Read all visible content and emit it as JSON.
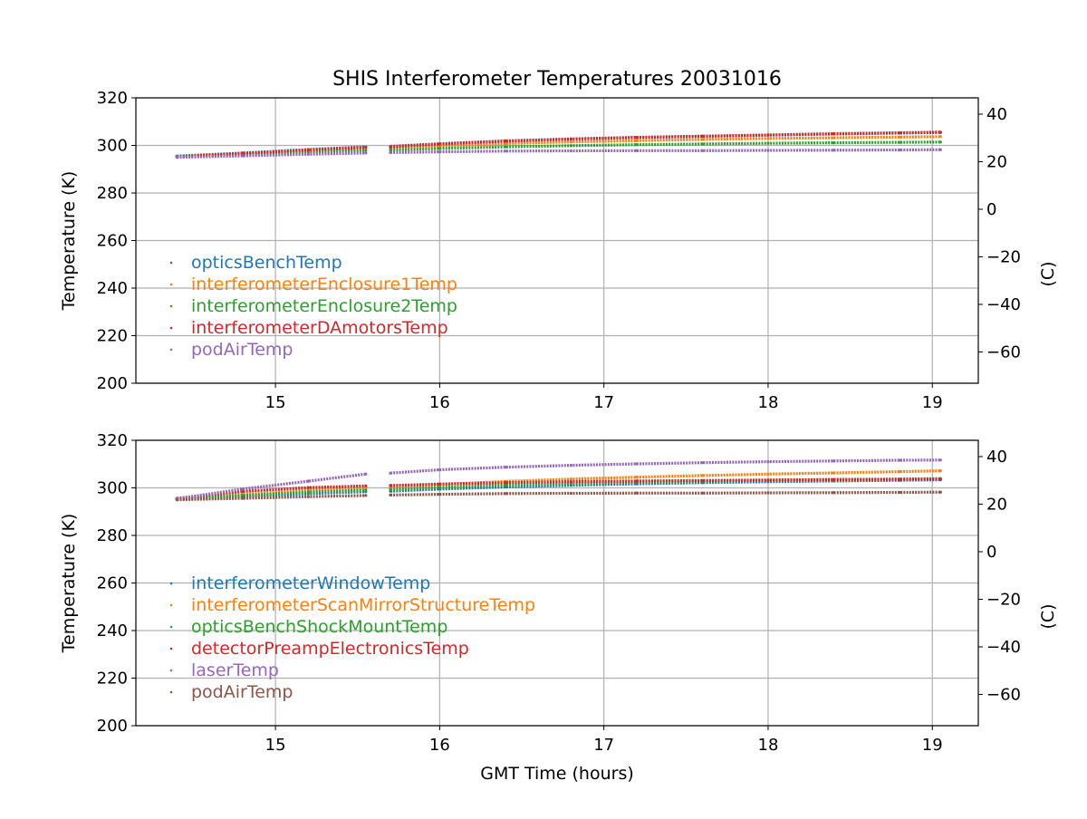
{
  "figure": {
    "title": "SHIS Interferometer Temperatures 20031016",
    "xlabel": "GMT Time (hours)"
  },
  "chart_data": [
    {
      "type": "scatter",
      "title": "SHIS Interferometer Temperatures 20031016",
      "xlabel": "",
      "ylabel": "Temperature (K)",
      "y2label": "(C)",
      "xlim": [
        14.15,
        19.28
      ],
      "ylim": [
        200,
        320
      ],
      "y2lim": [
        -73.15,
        46.85
      ],
      "xticks": [
        15,
        16,
        17,
        18,
        19
      ],
      "yticks": [
        200,
        220,
        240,
        260,
        280,
        300,
        320
      ],
      "y2ticks": [
        -60,
        -40,
        -20,
        0,
        20,
        40
      ],
      "grid": true,
      "legend_position": "lower-left",
      "x": [
        14.4,
        14.8,
        15.2,
        15.55,
        15.7,
        16.0,
        16.4,
        16.8,
        17.2,
        17.6,
        18.0,
        18.4,
        18.8,
        19.05
      ],
      "series": [
        {
          "name": "opticsBenchTemp",
          "color": "#1f77b4",
          "values": [
            295.5,
            296.8,
            298.3,
            299.4,
            299.6,
            300.7,
            301.9,
            302.7,
            303.3,
            303.8,
            304.3,
            304.8,
            305.2,
            305.4
          ]
        },
        {
          "name": "interferometerEnclosure1Temp",
          "color": "#ff7f0e",
          "values": [
            295.3,
            296.5,
            297.8,
            298.7,
            298.9,
            299.8,
            300.8,
            301.5,
            302.0,
            302.5,
            302.9,
            303.2,
            303.5,
            303.7
          ]
        },
        {
          "name": "interferometerEnclosure2Temp",
          "color": "#2ca02c",
          "values": [
            295.4,
            296.2,
            297.2,
            297.9,
            298.1,
            298.7,
            299.4,
            299.9,
            300.3,
            300.6,
            300.9,
            301.1,
            301.3,
            301.4
          ]
        },
        {
          "name": "interferometerDAmotorsTemp",
          "color": "#d62728",
          "values": [
            295.2,
            296.6,
            298.1,
            299.2,
            299.4,
            300.6,
            301.8,
            302.7,
            303.4,
            303.9,
            304.4,
            304.9,
            305.3,
            305.6
          ]
        },
        {
          "name": "podAirTemp",
          "color": "#9467bd",
          "values": [
            295.0,
            295.6,
            296.3,
            296.8,
            297.0,
            297.3,
            297.6,
            297.7,
            297.8,
            297.8,
            297.9,
            298.0,
            298.1,
            298.2
          ]
        }
      ]
    },
    {
      "type": "scatter",
      "title": "",
      "xlabel": "GMT Time (hours)",
      "ylabel": "Temperature (K)",
      "y2label": "(C)",
      "xlim": [
        14.15,
        19.28
      ],
      "ylim": [
        200,
        320
      ],
      "y2lim": [
        -73.15,
        46.85
      ],
      "xticks": [
        15,
        16,
        17,
        18,
        19
      ],
      "yticks": [
        200,
        220,
        240,
        260,
        280,
        300,
        320
      ],
      "y2ticks": [
        -60,
        -40,
        -20,
        0,
        20,
        40
      ],
      "grid": true,
      "legend_position": "lower-left",
      "x": [
        14.4,
        14.8,
        15.2,
        15.55,
        15.7,
        16.0,
        16.4,
        16.8,
        17.2,
        17.6,
        18.0,
        18.4,
        18.8,
        19.05
      ],
      "series": [
        {
          "name": "interferometerWindowTemp",
          "color": "#1f77b4",
          "values": [
            295.2,
            296.4,
            297.6,
            298.4,
            298.6,
            299.5,
            300.4,
            301.1,
            301.7,
            302.2,
            302.6,
            302.9,
            303.2,
            303.4
          ]
        },
        {
          "name": "interferometerScanMirrorStructureTemp",
          "color": "#ff7f0e",
          "values": [
            295.3,
            297.2,
            298.9,
            300.0,
            300.2,
            301.4,
            302.7,
            303.7,
            304.5,
            305.2,
            305.8,
            306.3,
            306.8,
            307.2
          ]
        },
        {
          "name": "opticsBenchShockMountTemp",
          "color": "#2ca02c",
          "values": [
            295.4,
            296.8,
            298.2,
            299.1,
            299.3,
            300.2,
            301.2,
            301.9,
            302.5,
            302.9,
            303.2,
            303.5,
            303.7,
            303.9
          ]
        },
        {
          "name": "detectorPreampElectronicsTemp",
          "color": "#d62728",
          "values": [
            295.6,
            298.5,
            300.1,
            300.8,
            301.0,
            301.6,
            302.2,
            302.6,
            302.9,
            303.1,
            303.3,
            303.5,
            303.6,
            303.7
          ]
        },
        {
          "name": "laserTemp",
          "color": "#9467bd",
          "values": [
            295.4,
            299.5,
            302.8,
            305.8,
            306.2,
            307.6,
            308.7,
            309.5,
            310.1,
            310.6,
            311.0,
            311.3,
            311.6,
            311.7
          ]
        },
        {
          "name": "podAirTemp",
          "color": "#8c564b",
          "values": [
            295.0,
            295.6,
            296.3,
            296.8,
            297.0,
            297.3,
            297.6,
            297.7,
            297.8,
            297.8,
            297.9,
            298.0,
            298.1,
            298.2
          ]
        }
      ]
    }
  ]
}
